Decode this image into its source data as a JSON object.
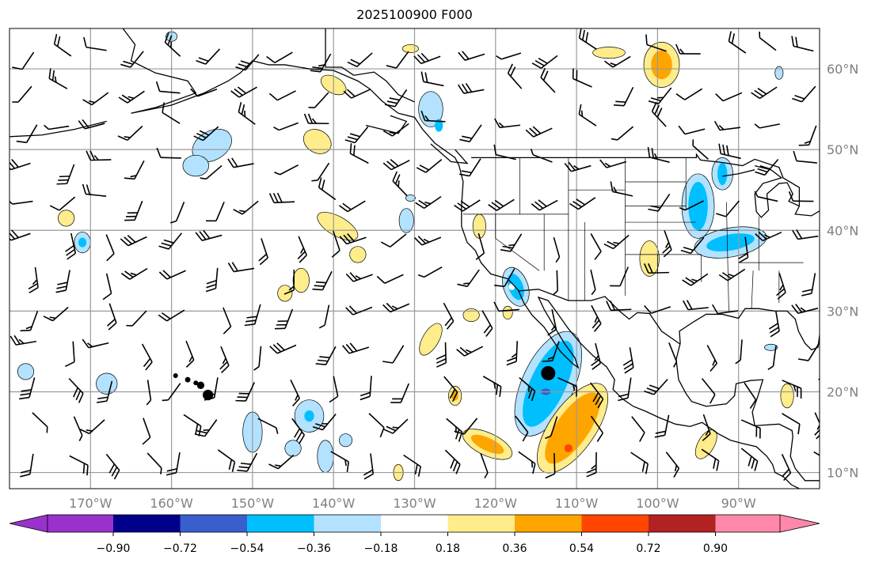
{
  "title": "2025100900 F000",
  "map": {
    "extent_lon": [
      -180,
      -80
    ],
    "extent_lat": [
      8,
      65
    ],
    "lon_ticks": [
      "170°W",
      "160°W",
      "150°W",
      "140°W",
      "130°W",
      "120°W",
      "110°W",
      "100°W",
      "90°W"
    ],
    "lat_ticks": [
      "60°N",
      "50°N",
      "40°N",
      "30°N",
      "20°N",
      "10°N"
    ],
    "marker": {
      "lon": -113.5,
      "lat": 22.3
    }
  },
  "colorbar": {
    "colors": [
      "#9932cc",
      "#00008b",
      "#3a5fcd",
      "#00bfff",
      "#b2e2ff",
      "#ffffff",
      "#ffec8b",
      "#ffa500",
      "#ff4500",
      "#b22222",
      "#ff88aa"
    ],
    "ticks": [
      "−0.90",
      "−0.72",
      "−0.54",
      "−0.36",
      "−0.18",
      "0.18",
      "0.36",
      "0.54",
      "0.72",
      "0.90"
    ]
  }
}
